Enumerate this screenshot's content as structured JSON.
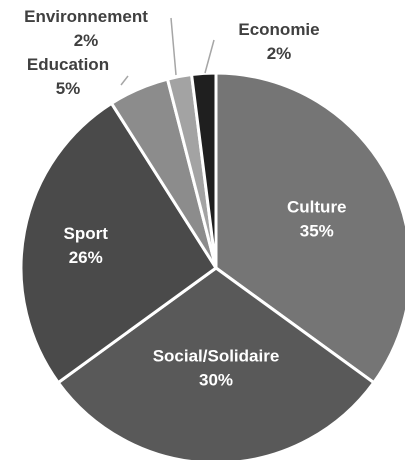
{
  "chart_data": {
    "type": "pie",
    "categories": [
      "Culture",
      "Social/Solidaire",
      "Sport",
      "Education",
      "Environnement",
      "Economie"
    ],
    "values": [
      35,
      30,
      26,
      5,
      2,
      2
    ],
    "value_labels": [
      "35%",
      "30%",
      "26%",
      "5%",
      "2%",
      "2%"
    ],
    "colors": [
      "#757575",
      "#595959",
      "#4a4a4a",
      "#8c8c8c",
      "#a3a3a3",
      "#1f1f1f"
    ],
    "slice_stroke": "#ffffff",
    "title": ""
  }
}
